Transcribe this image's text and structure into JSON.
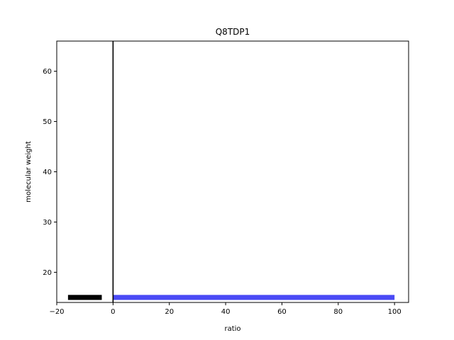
{
  "chart_data": {
    "type": "bar",
    "orientation": "horizontal",
    "title": "Q8TDP1",
    "xlabel": "ratio",
    "ylabel": "molecular weight",
    "xlim": [
      -20,
      105
    ],
    "ylim": [
      14,
      66
    ],
    "xticks": [
      -20,
      0,
      20,
      40,
      60,
      80,
      100
    ],
    "yticks": [
      20,
      30,
      40,
      50,
      60
    ],
    "xtick_labels": [
      "−20",
      "0",
      "20",
      "40",
      "60",
      "80",
      "100"
    ],
    "ytick_labels": [
      "20",
      "30",
      "40",
      "50",
      "60"
    ],
    "reference_line": {
      "x": 0,
      "color": "#000000"
    },
    "grid": false,
    "bars": [
      {
        "y": 15.0,
        "x_start": -16,
        "x_end": -4,
        "thickness": 1.0,
        "color": "#000000"
      },
      {
        "y": 15.0,
        "x_start": 0,
        "x_end": 100,
        "thickness": 1.0,
        "color": "#4a4af5"
      }
    ]
  }
}
